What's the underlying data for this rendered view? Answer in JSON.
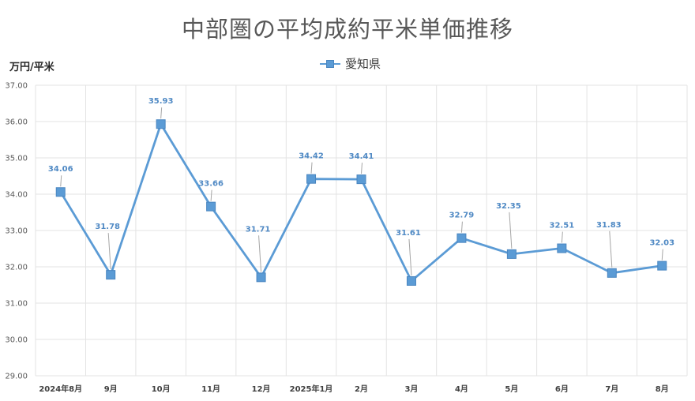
{
  "chart_data": {
    "type": "line",
    "title": "中部圏の平均成約平米単価推移",
    "ylabel": "万円/平米",
    "xlabel": "",
    "categories": [
      "2024年8月",
      "9月",
      "10月",
      "11月",
      "12月",
      "2025年1月",
      "2月",
      "3月",
      "4月",
      "5月",
      "6月",
      "7月",
      "8月"
    ],
    "series": [
      {
        "name": "愛知県",
        "values": [
          34.06,
          31.78,
          35.93,
          33.66,
          31.71,
          34.42,
          34.41,
          31.61,
          32.79,
          32.35,
          32.51,
          31.83,
          32.03
        ],
        "labels": [
          "34.06",
          "31.78",
          "35.93",
          "33.66",
          "31.71",
          "34.42",
          "34.41",
          "31.61",
          "32.79",
          "32.35",
          "32.51",
          "31.83",
          "32.03"
        ]
      }
    ],
    "ylim": [
      29,
      37
    ],
    "yticks": [
      "29.00",
      "30.00",
      "31.00",
      "32.00",
      "33.00",
      "34.00",
      "35.00",
      "36.00",
      "37.00"
    ],
    "grid": true,
    "legend_position": "top-center",
    "colors": {
      "series": "#5B9BD5",
      "label": "#4F89C4",
      "grid": "#E3E3E3"
    }
  }
}
